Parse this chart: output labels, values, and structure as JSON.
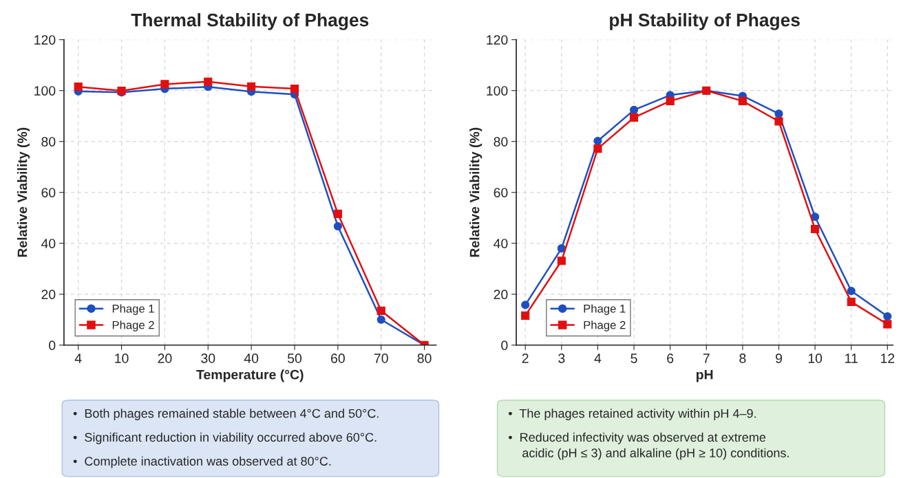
{
  "chart_data": [
    {
      "type": "line",
      "title": "Thermal Stability of Phages",
      "xlabel": "Temperature (°C)",
      "ylabel": "Relative Viability (%)",
      "categories": [
        "4",
        "10",
        "20",
        "30",
        "40",
        "50",
        "60",
        "70",
        "80"
      ],
      "series": [
        {
          "name": "Phage 1",
          "color": "#1f4fbf",
          "marker": "circle",
          "values": [
            99.7,
            99.3,
            100.7,
            101.5,
            99.6,
            98.5,
            46.7,
            10.0,
            0
          ]
        },
        {
          "name": "Phage 2",
          "color": "#e01010",
          "marker": "square",
          "values": [
            101.5,
            99.9,
            102.5,
            103.5,
            101.6,
            100.7,
            51.6,
            13.5,
            0
          ]
        }
      ],
      "ylim": [
        0,
        120
      ],
      "yticks": [
        0,
        20,
        40,
        60,
        80,
        100,
        120
      ],
      "grid": true,
      "legend": "bottom left",
      "line_style": "solid",
      "annotations": [
        "•  Both phages remained stable between 4°C and 50°C.",
        "•  Significant reduction in viability occurred above 60°C.",
        "•  Complete inactivation was observed at 80°C."
      ]
    },
    {
      "type": "line",
      "title": "pH Stability of Phages",
      "xlabel": "pH",
      "ylabel": "Relative Viability (%)",
      "x": [
        2,
        3,
        4,
        5,
        6,
        7,
        8,
        9,
        10,
        11,
        12
      ],
      "series": [
        {
          "name": "Phage 1",
          "color": "#1f4fbf",
          "marker": "circle",
          "values": [
            15.8,
            38.0,
            80.2,
            92.4,
            98.2,
            100,
            97.9,
            90.9,
            50.4,
            21.3,
            11.3
          ]
        },
        {
          "name": "Phage 2",
          "color": "#e01010",
          "marker": "square",
          "values": [
            11.6,
            33.1,
            77.2,
            89.4,
            95.9,
            100,
            95.9,
            87.9,
            45.6,
            17.0,
            8.2
          ]
        }
      ],
      "xlim": [
        1.75,
        12.15
      ],
      "xticks": [
        2,
        3,
        4,
        5,
        6,
        7,
        8,
        9,
        10,
        11,
        12
      ],
      "ylim": [
        0,
        120
      ],
      "yticks": [
        0,
        20,
        40,
        60,
        80,
        100,
        120
      ],
      "grid": true,
      "legend": "bottom left",
      "line_style": "solid",
      "annotations": [
        "•  The phages retained activity within pH 4–9.",
        "•  Reduced infectivity was observed at extreme\n    acidic (pH ≤ 3) and alkaline (pH ≥ 10) conditions."
      ]
    }
  ]
}
